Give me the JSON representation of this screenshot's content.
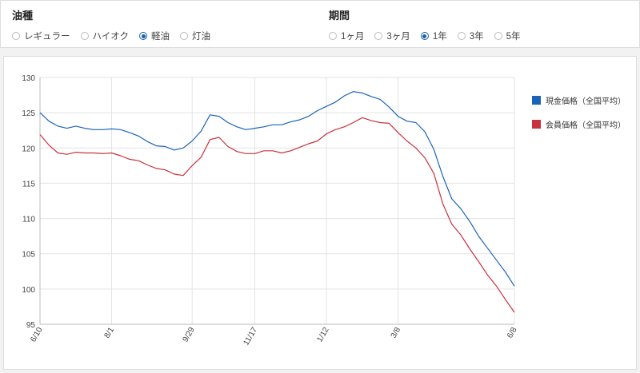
{
  "filters": {
    "fuel": {
      "title": "油種",
      "options": [
        {
          "label": "レギュラー",
          "checked": false
        },
        {
          "label": "ハイオク",
          "checked": false
        },
        {
          "label": "軽油",
          "checked": true
        },
        {
          "label": "灯油",
          "checked": false
        }
      ]
    },
    "period": {
      "title": "期間",
      "options": [
        {
          "label": "1ヶ月",
          "checked": false
        },
        {
          "label": "3ヶ月",
          "checked": false
        },
        {
          "label": "1年",
          "checked": true
        },
        {
          "label": "3年",
          "checked": false
        },
        {
          "label": "5年",
          "checked": false
        }
      ]
    }
  },
  "colors": {
    "cash": "#1b63b8",
    "member": "#c8323c",
    "grid": "#e3e3e3",
    "axis": "#bbbbbb"
  },
  "chart_data": {
    "type": "line",
    "ylim": [
      95,
      130
    ],
    "yticks": [
      95,
      100,
      105,
      110,
      115,
      120,
      125,
      130
    ],
    "x": [
      "6/10",
      "6/17",
      "6/24",
      "7/1",
      "7/8",
      "7/15",
      "7/22",
      "7/29",
      "8/1",
      "8/8",
      "8/15",
      "8/22",
      "8/29",
      "9/5",
      "9/12",
      "9/19",
      "9/26",
      "9/29",
      "10/6",
      "10/13",
      "10/20",
      "10/27",
      "11/3",
      "11/10",
      "11/17",
      "11/24",
      "12/1",
      "12/8",
      "12/15",
      "12/22",
      "12/29",
      "1/5",
      "1/12",
      "1/19",
      "1/26",
      "2/2",
      "2/9",
      "2/16",
      "2/23",
      "3/2",
      "3/8",
      "3/15",
      "3/22",
      "3/29",
      "4/5",
      "4/12",
      "4/19",
      "4/26",
      "5/3",
      "5/10",
      "5/17",
      "5/24",
      "5/31",
      "6/8"
    ],
    "xticklabels": [
      "6/10",
      "8/1",
      "9/29",
      "11/17",
      "1/12",
      "3/8",
      "6/8"
    ],
    "grid": true,
    "legend_position": "right",
    "series": [
      {
        "name": "現金価格（全国平均）",
        "color": "#1b63b8",
        "values": [
          125.0,
          123.8,
          123.1,
          122.8,
          123.1,
          122.8,
          122.6,
          122.6,
          122.7,
          122.6,
          122.2,
          121.7,
          120.9,
          120.3,
          120.2,
          119.7,
          120.0,
          121.0,
          122.4,
          124.7,
          124.5,
          123.6,
          123.0,
          122.6,
          122.8,
          123.0,
          123.3,
          123.3,
          123.7,
          124.0,
          124.5,
          125.3,
          125.9,
          126.5,
          127.4,
          128.0,
          127.8,
          127.3,
          126.9,
          125.8,
          124.5,
          123.8,
          123.6,
          122.3,
          119.8,
          116.0,
          112.8,
          111.4,
          109.6,
          107.5,
          105.8,
          104.1,
          102.4,
          100.4
        ]
      },
      {
        "name": "会員価格（全国平均）",
        "color": "#c8323c",
        "values": [
          121.9,
          120.4,
          119.3,
          119.1,
          119.4,
          119.3,
          119.3,
          119.2,
          119.3,
          118.9,
          118.4,
          118.2,
          117.6,
          117.1,
          116.9,
          116.3,
          116.1,
          117.5,
          118.7,
          121.2,
          121.5,
          120.2,
          119.5,
          119.2,
          119.2,
          119.6,
          119.6,
          119.3,
          119.6,
          120.1,
          120.6,
          121.0,
          122.0,
          122.6,
          123.0,
          123.6,
          124.3,
          123.9,
          123.6,
          123.5,
          122.2,
          121.0,
          120.0,
          118.6,
          116.4,
          112.1,
          109.2,
          107.7,
          105.7,
          103.9,
          102.0,
          100.4,
          98.5,
          96.7
        ]
      }
    ]
  }
}
